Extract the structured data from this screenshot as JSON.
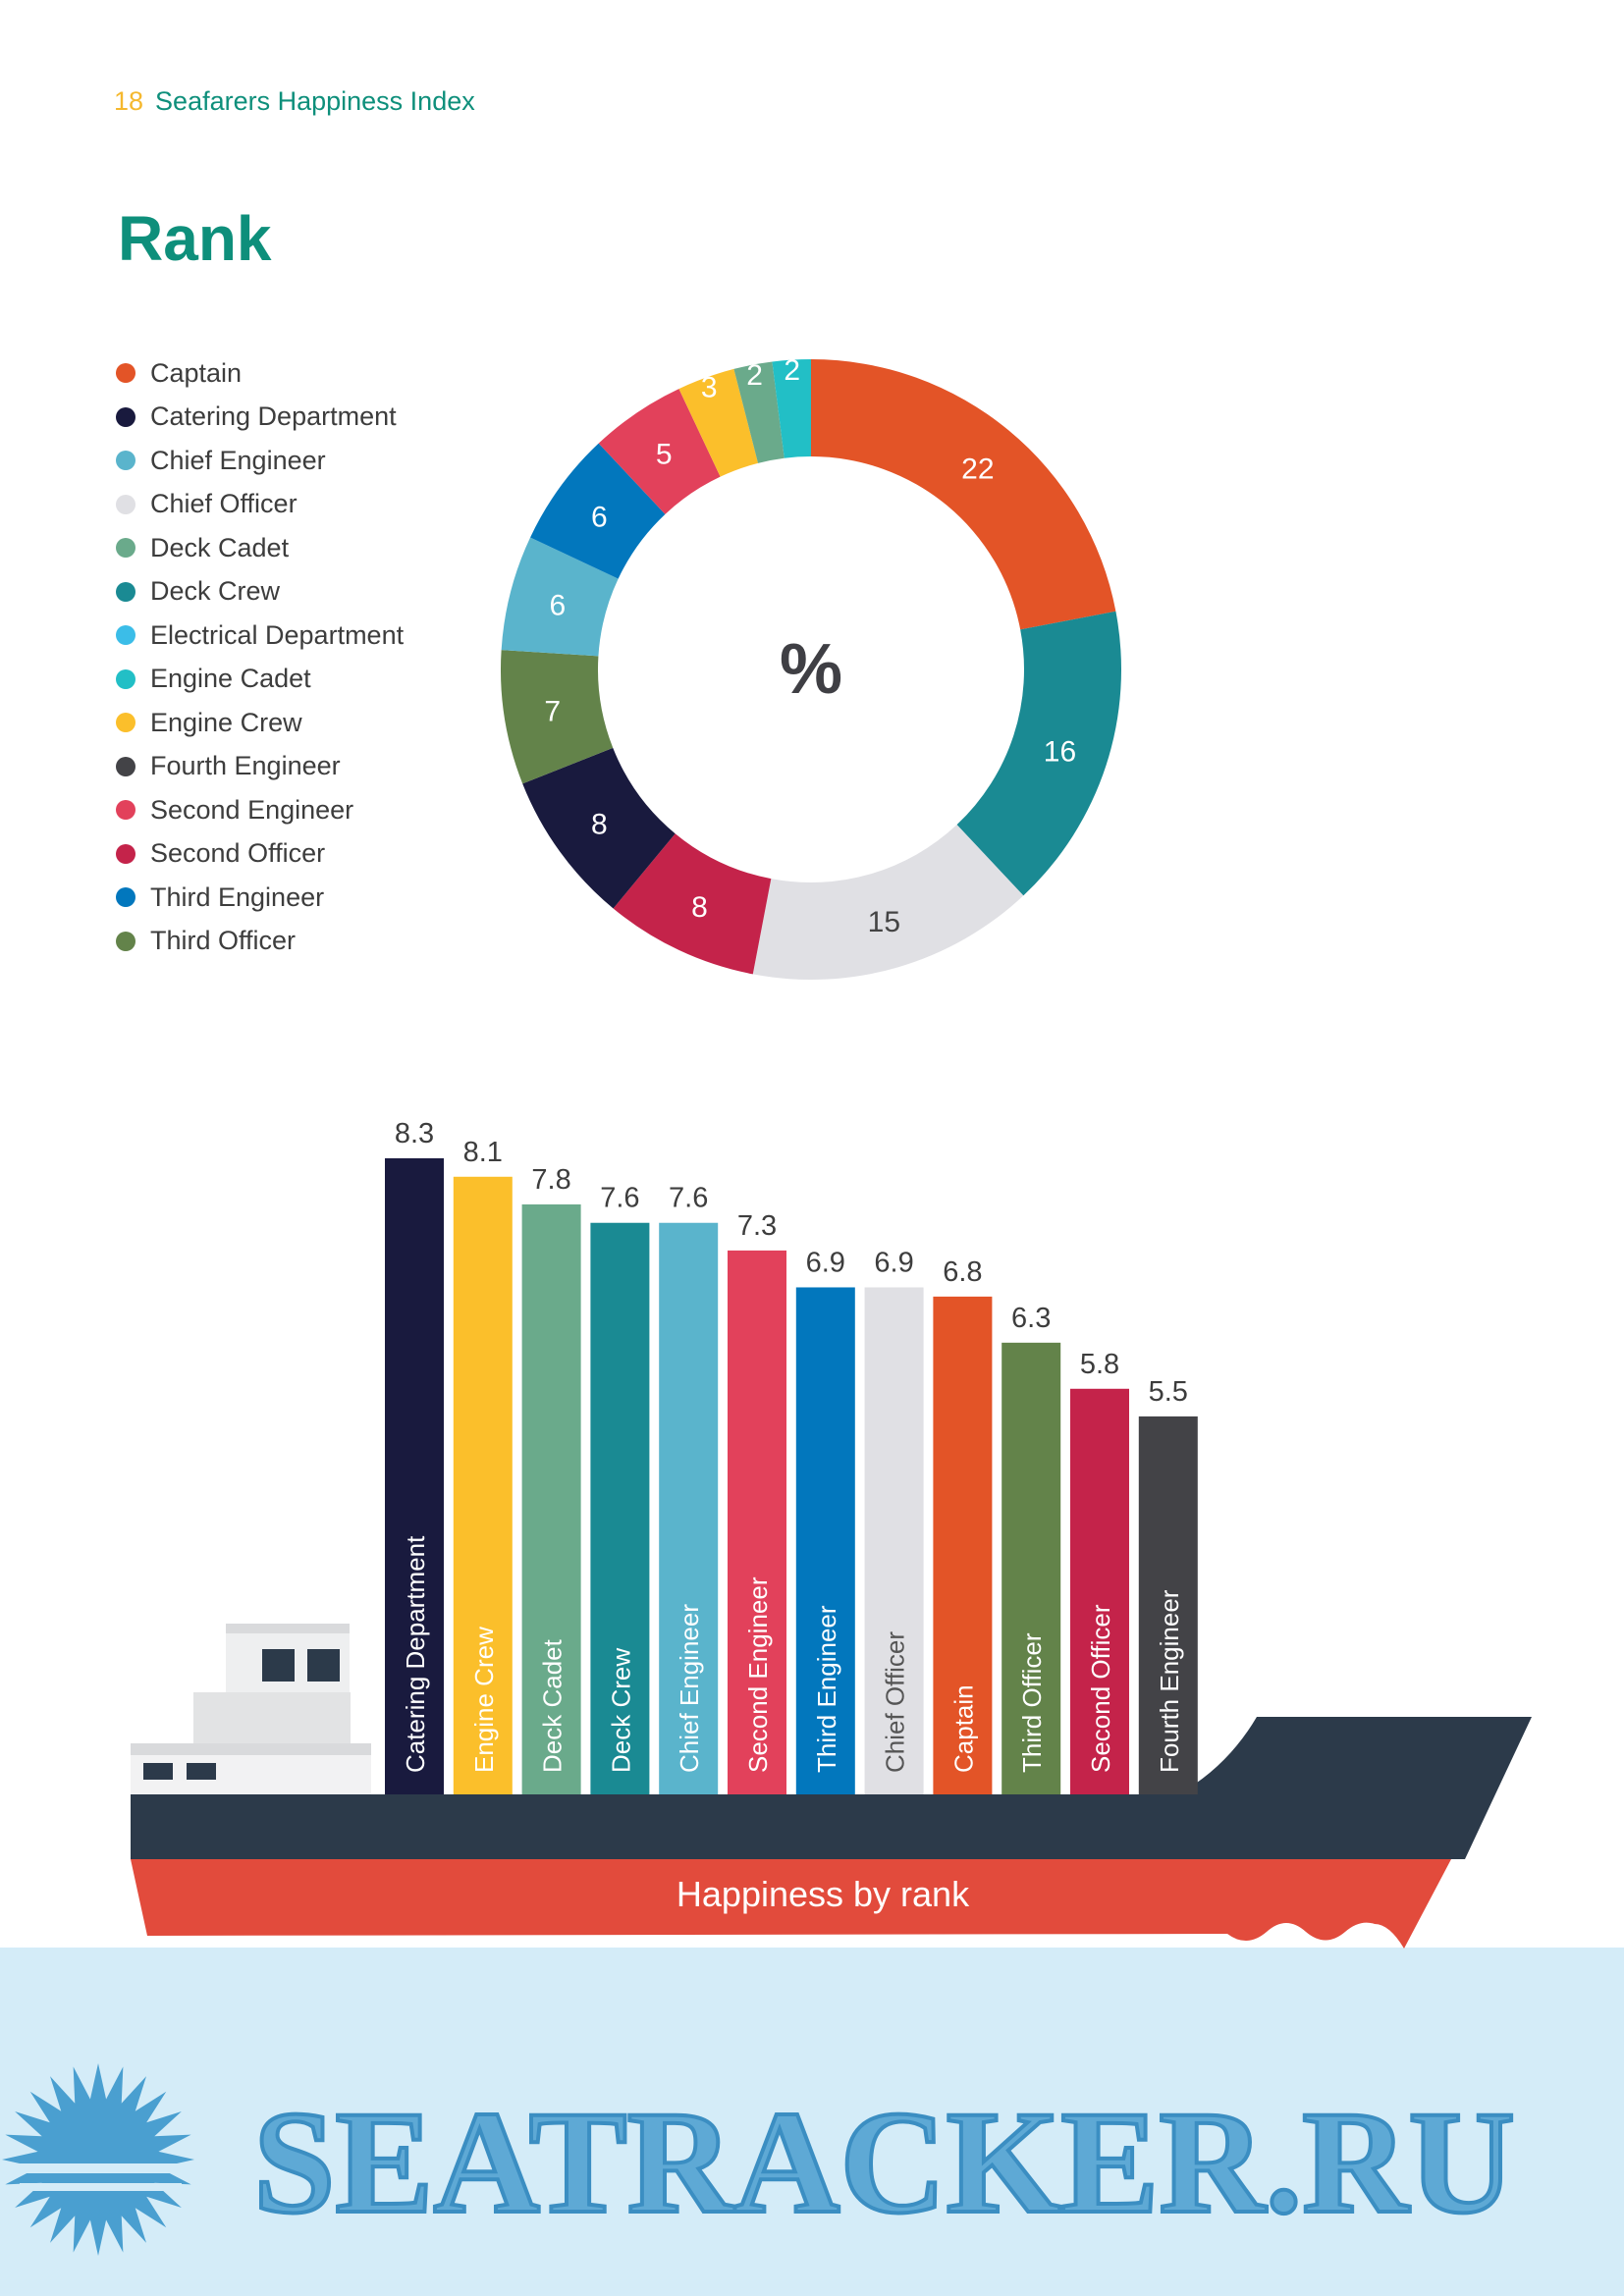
{
  "header": {
    "page_number": "18",
    "title": "Seafarers Happiness Index"
  },
  "section_title": "Rank",
  "watermark": "SEATRACKER.RU",
  "colors": {
    "Captain": "#e35427",
    "Catering Department": "#191a3e",
    "Chief Engineer": "#5ab4cc",
    "Chief Officer": "#e0e0e4",
    "Deck Cadet": "#6aaa8b",
    "Deck Crew": "#1a8a93",
    "Electrical Department": "#3bbde8",
    "Engine Cadet": "#22bfc6",
    "Engine Crew": "#fbbf2b",
    "Fourth Engineer": "#434347",
    "Second Engineer": "#e2415b",
    "Second Officer": "#c4234a",
    "Third Engineer": "#0277bd",
    "Third Officer": "#63834a"
  },
  "chart_data": [
    {
      "type": "pie",
      "variant": "donut",
      "center_label": "%",
      "legend": [
        "Captain",
        "Catering Department",
        "Chief Engineer",
        "Chief Officer",
        "Deck Cadet",
        "Deck Crew",
        "Electrical Department",
        "Engine Cadet",
        "Engine Crew",
        "Fourth Engineer",
        "Second Engineer",
        "Second Officer",
        "Third Engineer",
        "Third Officer"
      ],
      "legend_placement": "left",
      "slices": [
        {
          "label": "Captain",
          "value": 22
        },
        {
          "label": "Deck Crew",
          "value": 16
        },
        {
          "label": "Chief Officer",
          "value": 15
        },
        {
          "label": "Second Officer",
          "value": 8
        },
        {
          "label": "Catering Department",
          "value": 8
        },
        {
          "label": "Third Officer",
          "value": 7
        },
        {
          "label": "Chief Engineer",
          "value": 6
        },
        {
          "label": "Third Engineer",
          "value": 6
        },
        {
          "label": "Second Engineer",
          "value": 5
        },
        {
          "label": "Engine Crew",
          "value": 3
        },
        {
          "label": "Deck Cadet",
          "value": 2
        },
        {
          "label": "Engine Cadet",
          "value": 2
        }
      ]
    },
    {
      "type": "bar",
      "title": "Happiness by rank",
      "categories": [
        "Catering Department",
        "Engine Crew",
        "Deck Cadet",
        "Deck Crew",
        "Chief Engineer",
        "Second Engineer",
        "Third Engineer",
        "Chief Officer",
        "Captain",
        "Third Officer",
        "Second Officer",
        "Fourth Engineer"
      ],
      "values": [
        8.3,
        8.1,
        7.8,
        7.6,
        7.6,
        7.3,
        6.9,
        6.9,
        6.8,
        6.3,
        5.8,
        5.5
      ],
      "ylim": [
        1.4,
        8.3
      ]
    }
  ]
}
